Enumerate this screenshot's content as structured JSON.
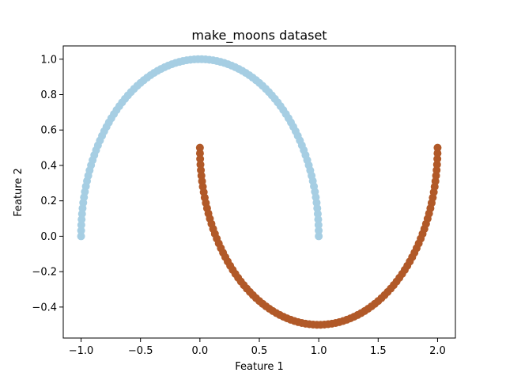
{
  "chart_data": {
    "type": "scatter",
    "title": "make_moons dataset",
    "xlabel": "Feature 1",
    "ylabel": "Feature 2",
    "xlim": [
      -1.15,
      2.15
    ],
    "ylim": [
      -0.575,
      1.075
    ],
    "xticks": [
      -1.0,
      -0.5,
      0.0,
      0.5,
      1.0,
      1.5,
      2.0
    ],
    "xtick_labels": [
      "−1.0",
      "−0.5",
      "0.0",
      "0.5",
      "1.0",
      "1.5",
      "2.0"
    ],
    "yticks": [
      -0.4,
      -0.2,
      0.0,
      0.2,
      0.4,
      0.6,
      0.8,
      1.0
    ],
    "ytick_labels": [
      "−0.4",
      "−0.2",
      "0.0",
      "0.2",
      "0.4",
      "0.6",
      "0.8",
      "1.0"
    ],
    "grid": false,
    "series": [
      {
        "color": "#a6cee3",
        "points_count": 100,
        "shape": "upper half circle",
        "x_range": [
          -1.0,
          1.0
        ],
        "y_range": [
          0.0,
          1.0
        ]
      },
      {
        "color": "#b15928",
        "points_count": 100,
        "shape": "lower half circle",
        "x_range": [
          0.0,
          2.0
        ],
        "y_range": [
          -0.5,
          0.5
        ]
      }
    ]
  }
}
